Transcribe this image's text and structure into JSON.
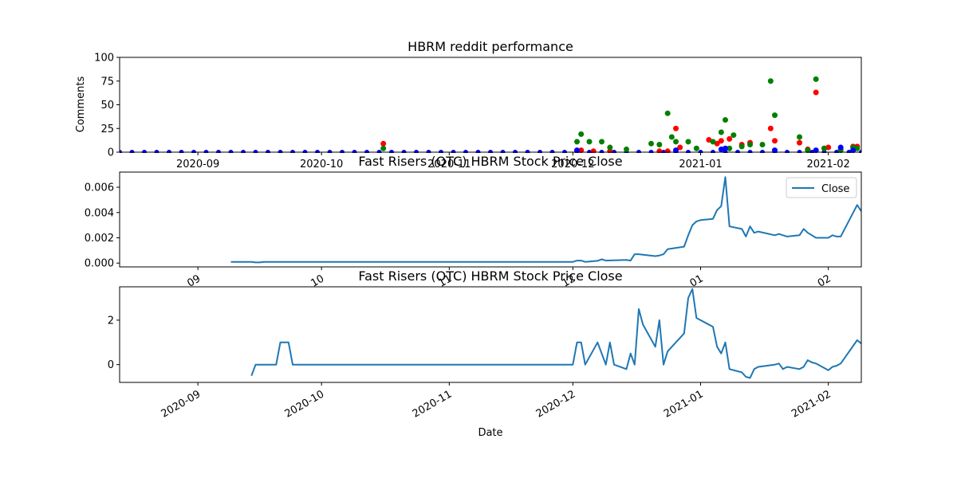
{
  "chart_data": [
    {
      "type": "scatter",
      "title": "HBRM reddit performance",
      "ylabel": "Comments",
      "xlabel": "",
      "xlim": [
        "2020-08-13",
        "2021-02-09"
      ],
      "ylim": [
        0,
        100
      ],
      "yticks": [
        0,
        25,
        50,
        75,
        100
      ],
      "xtick_labels": [
        "2020-09",
        "2020-10",
        "2020-11",
        "2020-12",
        "2021-01",
        "2021-02"
      ],
      "xtick_dates": [
        "2020-09-01",
        "2020-10-01",
        "2020-11-01",
        "2020-12-01",
        "2021-01-01",
        "2021-02-01"
      ],
      "colors": {
        "baseline": "#0000ff",
        "series_a": "#ff0000",
        "series_b": "#008000"
      },
      "baseline_points": {
        "start": "2020-08-13",
        "end": "2021-02-09",
        "step_days": 3,
        "value": 0
      },
      "series": [
        {
          "color": "#ff0000",
          "points": [
            [
              "2020-10-16",
              9
            ],
            [
              "2020-12-02",
              1
            ],
            [
              "2020-12-03",
              2
            ],
            [
              "2020-12-06",
              1
            ],
            [
              "2020-12-10",
              1
            ],
            [
              "2020-12-22",
              1
            ],
            [
              "2020-12-24",
              1
            ],
            [
              "2020-12-26",
              25
            ],
            [
              "2020-12-27",
              5
            ],
            [
              "2021-01-03",
              13
            ],
            [
              "2021-01-05",
              9
            ],
            [
              "2021-01-06",
              12
            ],
            [
              "2021-01-08",
              14
            ],
            [
              "2021-01-11",
              8
            ],
            [
              "2021-01-13",
              10
            ],
            [
              "2021-01-18",
              25
            ],
            [
              "2021-01-19",
              12
            ],
            [
              "2021-01-25",
              10
            ],
            [
              "2021-01-27",
              3
            ],
            [
              "2021-01-29",
              63
            ],
            [
              "2021-01-31",
              4
            ],
            [
              "2021-02-01",
              5
            ],
            [
              "2021-02-04",
              3
            ],
            [
              "2021-02-07",
              6
            ],
            [
              "2021-02-08",
              6
            ]
          ]
        },
        {
          "color": "#008000",
          "points": [
            [
              "2020-10-16",
              4
            ],
            [
              "2020-12-02",
              11
            ],
            [
              "2020-12-03",
              19
            ],
            [
              "2020-12-05",
              11
            ],
            [
              "2020-12-08",
              11
            ],
            [
              "2020-12-10",
              5
            ],
            [
              "2020-12-14",
              3
            ],
            [
              "2020-12-20",
              9
            ],
            [
              "2020-12-22",
              8
            ],
            [
              "2020-12-24",
              41
            ],
            [
              "2020-12-25",
              16
            ],
            [
              "2020-12-26",
              11
            ],
            [
              "2020-12-29",
              11
            ],
            [
              "2020-12-31",
              4
            ],
            [
              "2021-01-04",
              11
            ],
            [
              "2021-01-06",
              21
            ],
            [
              "2021-01-07",
              34
            ],
            [
              "2021-01-08",
              4
            ],
            [
              "2021-01-09",
              18
            ],
            [
              "2021-01-11",
              6
            ],
            [
              "2021-01-13",
              8
            ],
            [
              "2021-01-16",
              8
            ],
            [
              "2021-01-18",
              75
            ],
            [
              "2021-01-19",
              39
            ],
            [
              "2021-01-25",
              16
            ],
            [
              "2021-01-27",
              2
            ],
            [
              "2021-01-29",
              77
            ],
            [
              "2021-01-31",
              4
            ],
            [
              "2021-02-04",
              2
            ],
            [
              "2021-02-07",
              5
            ],
            [
              "2021-02-08",
              4
            ]
          ]
        },
        {
          "color": "#0000ff",
          "points": [
            [
              "2020-12-02",
              2
            ],
            [
              "2020-12-26",
              2
            ],
            [
              "2021-01-06",
              3
            ],
            [
              "2021-01-07",
              4
            ],
            [
              "2021-01-19",
              2
            ],
            [
              "2021-01-29",
              2
            ],
            [
              "2021-02-04",
              5
            ],
            [
              "2021-02-07",
              2
            ]
          ]
        }
      ]
    },
    {
      "type": "line",
      "title": "Fast Risers (OTC) HBRM Stock Price Close",
      "xlim": [
        "2020-08-13",
        "2021-02-09"
      ],
      "ylim": [
        -0.0003,
        0.0072
      ],
      "yticks": [
        0,
        0.002,
        0.004,
        0.006
      ],
      "ytick_labels": [
        "0.000",
        "0.002",
        "0.004",
        "0.006"
      ],
      "xtick_labels": [
        "09",
        "10",
        "11",
        "12",
        "01",
        "02"
      ],
      "xtick_dates": [
        "2020-09-01",
        "2020-10-01",
        "2020-11-01",
        "2020-12-01",
        "2021-01-01",
        "2021-02-01"
      ],
      "legend": {
        "entries": [
          "Close"
        ],
        "position": "upper right"
      },
      "series": [
        {
          "name": "Close",
          "color": "#1f77b4",
          "points": [
            [
              "2020-09-09",
              0.0001
            ],
            [
              "2020-09-14",
              0.0001
            ],
            [
              "2020-09-15",
              5e-05
            ],
            [
              "2020-09-16",
              5e-05
            ],
            [
              "2020-09-17",
              0.0001
            ],
            [
              "2020-12-01",
              0.0001
            ],
            [
              "2020-12-02",
              0.0002
            ],
            [
              "2020-12-03",
              0.0002
            ],
            [
              "2020-12-04",
              0.0001
            ],
            [
              "2020-12-07",
              0.00018
            ],
            [
              "2020-12-08",
              0.0003
            ],
            [
              "2020-12-09",
              0.0002
            ],
            [
              "2020-12-14",
              0.00025
            ],
            [
              "2020-12-15",
              0.0002
            ],
            [
              "2020-12-16",
              0.0007
            ],
            [
              "2020-12-17",
              0.0007
            ],
            [
              "2020-12-21",
              0.00055
            ],
            [
              "2020-12-22",
              0.0006
            ],
            [
              "2020-12-23",
              0.0007
            ],
            [
              "2020-12-24",
              0.0011
            ],
            [
              "2020-12-28",
              0.0013
            ],
            [
              "2020-12-29",
              0.0022
            ],
            [
              "2020-12-30",
              0.003
            ],
            [
              "2020-12-31",
              0.0033
            ],
            [
              "2021-01-01",
              0.0034
            ],
            [
              "2021-01-04",
              0.0035
            ],
            [
              "2021-01-05",
              0.0042
            ],
            [
              "2021-01-06",
              0.0045
            ],
            [
              "2021-01-07",
              0.0068
            ],
            [
              "2021-01-08",
              0.0029
            ],
            [
              "2021-01-11",
              0.0027
            ],
            [
              "2021-01-12",
              0.0021
            ],
            [
              "2021-01-13",
              0.0029
            ],
            [
              "2021-01-14",
              0.0024
            ],
            [
              "2021-01-15",
              0.0025
            ],
            [
              "2021-01-19",
              0.0022
            ],
            [
              "2021-01-20",
              0.0023
            ],
            [
              "2021-01-22",
              0.0021
            ],
            [
              "2021-01-25",
              0.0022
            ],
            [
              "2021-01-26",
              0.0027
            ],
            [
              "2021-01-27",
              0.0024
            ],
            [
              "2021-01-28",
              0.0022
            ],
            [
              "2021-01-29",
              0.002
            ],
            [
              "2021-02-01",
              0.002
            ],
            [
              "2021-02-02",
              0.0022
            ],
            [
              "2021-02-03",
              0.0021
            ],
            [
              "2021-02-04",
              0.0021
            ],
            [
              "2021-02-08",
              0.0046
            ],
            [
              "2021-02-09",
              0.0041
            ]
          ]
        }
      ]
    },
    {
      "type": "line",
      "title": "Fast Risers (OTC) HBRM Stock Price Close",
      "xlabel": "Date",
      "xlim": [
        "2020-08-13",
        "2021-02-09"
      ],
      "ylim": [
        -0.8,
        3.5
      ],
      "yticks": [
        0,
        2
      ],
      "ytick_labels": [
        "0",
        "2"
      ],
      "xtick_labels": [
        "2020-09",
        "2020-10",
        "2020-11",
        "2020-12",
        "2021-01",
        "2021-02"
      ],
      "xtick_dates": [
        "2020-09-01",
        "2020-10-01",
        "2020-11-01",
        "2020-12-01",
        "2021-01-01",
        "2021-02-01"
      ],
      "series": [
        {
          "color": "#1f77b4",
          "points": [
            [
              "2020-09-14",
              -0.5
            ],
            [
              "2020-09-15",
              0
            ],
            [
              "2020-09-18",
              0
            ],
            [
              "2020-09-19",
              0
            ],
            [
              "2020-09-20",
              0
            ],
            [
              "2020-09-21",
              1
            ],
            [
              "2020-09-22",
              1
            ],
            [
              "2020-09-23",
              1
            ],
            [
              "2020-09-24",
              0
            ],
            [
              "2020-12-01",
              0
            ],
            [
              "2020-12-02",
              1
            ],
            [
              "2020-12-03",
              1
            ],
            [
              "2020-12-04",
              0
            ],
            [
              "2020-12-07",
              1
            ],
            [
              "2020-12-09",
              0
            ],
            [
              "2020-12-10",
              1
            ],
            [
              "2020-12-11",
              0
            ],
            [
              "2020-12-14",
              -0.2
            ],
            [
              "2020-12-15",
              0.5
            ],
            [
              "2020-12-16",
              0
            ],
            [
              "2020-12-17",
              2.5
            ],
            [
              "2020-12-18",
              1.8
            ],
            [
              "2020-12-21",
              0.8
            ],
            [
              "2020-12-22",
              2
            ],
            [
              "2020-12-23",
              0
            ],
            [
              "2020-12-24",
              0.6
            ],
            [
              "2020-12-28",
              1.4
            ],
            [
              "2020-12-29",
              3
            ],
            [
              "2020-12-30",
              3.4
            ],
            [
              "2020-12-31",
              2.1
            ],
            [
              "2021-01-04",
              1.7
            ],
            [
              "2021-01-05",
              0.8
            ],
            [
              "2021-01-06",
              0.5
            ],
            [
              "2021-01-07",
              1
            ],
            [
              "2021-01-08",
              -0.2
            ],
            [
              "2021-01-11",
              -0.35
            ],
            [
              "2021-01-12",
              -0.55
            ],
            [
              "2021-01-13",
              -0.6
            ],
            [
              "2021-01-14",
              -0.2
            ],
            [
              "2021-01-15",
              -0.1
            ],
            [
              "2021-01-19",
              0
            ],
            [
              "2021-01-20",
              0.05
            ],
            [
              "2021-01-21",
              -0.2
            ],
            [
              "2021-01-22",
              -0.1
            ],
            [
              "2021-01-25",
              -0.2
            ],
            [
              "2021-01-26",
              -0.1
            ],
            [
              "2021-01-27",
              0.2
            ],
            [
              "2021-01-28",
              0.1
            ],
            [
              "2021-01-29",
              0.05
            ],
            [
              "2021-02-01",
              -0.25
            ],
            [
              "2021-02-02",
              -0.1
            ],
            [
              "2021-02-03",
              -0.05
            ],
            [
              "2021-02-04",
              0.05
            ],
            [
              "2021-02-08",
              1.1
            ],
            [
              "2021-02-09",
              0.95
            ]
          ]
        }
      ]
    }
  ]
}
